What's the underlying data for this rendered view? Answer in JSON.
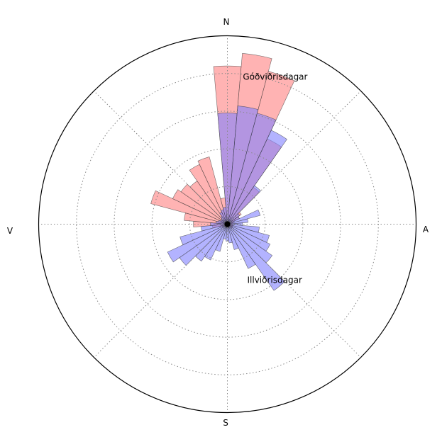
{
  "chart_data": {
    "type": "polar-bar",
    "directions": {
      "north": "N",
      "east": "A",
      "south": "S",
      "west": "V"
    },
    "theta_zero": "north",
    "theta_direction": "clockwise",
    "sector_width_deg": 10,
    "rlim": [
      0,
      5
    ],
    "rings": [
      1,
      2,
      3,
      4
    ],
    "spokes_deg": [
      0,
      45,
      90,
      135,
      180,
      225,
      270,
      315
    ],
    "grid": true,
    "series": [
      {
        "name": "Góðviðrisdagar",
        "color": "#ff8080",
        "alpha": 0.6,
        "label_at": {
          "theta": 18,
          "r": 4.1
        },
        "directions_deg": [
          0,
          10,
          20,
          30,
          40,
          50,
          60,
          70,
          80,
          90,
          100,
          110,
          120,
          130,
          140,
          150,
          160,
          170,
          180,
          190,
          200,
          210,
          220,
          230,
          240,
          250,
          260,
          270,
          280,
          290,
          300,
          310,
          320,
          330,
          340,
          350
        ],
        "values": [
          4.2,
          4.55,
          4.2,
          2.5,
          1.2,
          0.45,
          0.35,
          0.2,
          0.15,
          0.15,
          0.15,
          0.15,
          0.15,
          0.15,
          0.1,
          0.1,
          0.1,
          0.1,
          0.1,
          0.1,
          0.1,
          0.1,
          0.1,
          0.1,
          0.15,
          0.2,
          0.4,
          0.9,
          1.15,
          2.1,
          1.6,
          1.5,
          1.4,
          1.75,
          1.85,
          0.7
        ]
      },
      {
        "name": "Illviðrisdagar",
        "color": "#8080ff",
        "alpha": 0.6,
        "label_at": {
          "theta": 140,
          "r": 1.95
        },
        "directions_deg": [
          0,
          10,
          20,
          30,
          40,
          50,
          60,
          70,
          80,
          90,
          100,
          110,
          120,
          130,
          140,
          150,
          160,
          170,
          180,
          190,
          200,
          210,
          220,
          230,
          240,
          250,
          260,
          270,
          280,
          290,
          300,
          310,
          320,
          330,
          340,
          350
        ],
        "values": [
          2.95,
          3.15,
          3.05,
          2.75,
          1.25,
          0.4,
          0.35,
          0.9,
          0.55,
          0.4,
          0.85,
          1.15,
          1.25,
          1.45,
          2.15,
          1.3,
          0.7,
          0.5,
          0.45,
          0.4,
          0.75,
          1.05,
          1.2,
          1.55,
          1.75,
          1.3,
          0.7,
          0.45,
          0.3,
          0.25,
          0.2,
          0.2,
          0.25,
          0.35,
          0.4,
          0.45
        ]
      }
    ]
  }
}
